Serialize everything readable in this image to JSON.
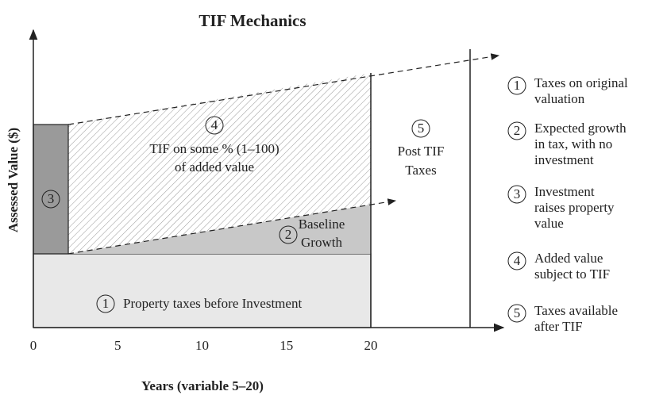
{
  "title": "TIF Mechanics",
  "y_axis_label": "Assessed Value ($)",
  "x_axis_label": "Years (variable 5–20)",
  "x_ticks": [
    0,
    5,
    10,
    15,
    20
  ],
  "regions": [
    {
      "num": "1",
      "lines": [
        "Property taxes before Investment"
      ]
    },
    {
      "num": "2",
      "lines": [
        "Baseline",
        "Growth"
      ]
    },
    {
      "num": "3",
      "lines": []
    },
    {
      "num": "4",
      "lines": [
        "TIF on some % (1–100)",
        "of added value"
      ]
    },
    {
      "num": "5",
      "lines": [
        "Post TIF",
        "Taxes"
      ]
    }
  ],
  "legend": [
    {
      "num": "1",
      "lines": [
        "Taxes on original",
        "valuation"
      ]
    },
    {
      "num": "2",
      "lines": [
        "Expected growth",
        "in tax, with no",
        "investment"
      ]
    },
    {
      "num": "3",
      "lines": [
        "Investment",
        "raises property",
        "value"
      ]
    },
    {
      "num": "4",
      "lines": [
        "Added value",
        "subject to TIF"
      ]
    },
    {
      "num": "5",
      "lines": [
        "Taxes available",
        "after TIF"
      ]
    }
  ]
}
